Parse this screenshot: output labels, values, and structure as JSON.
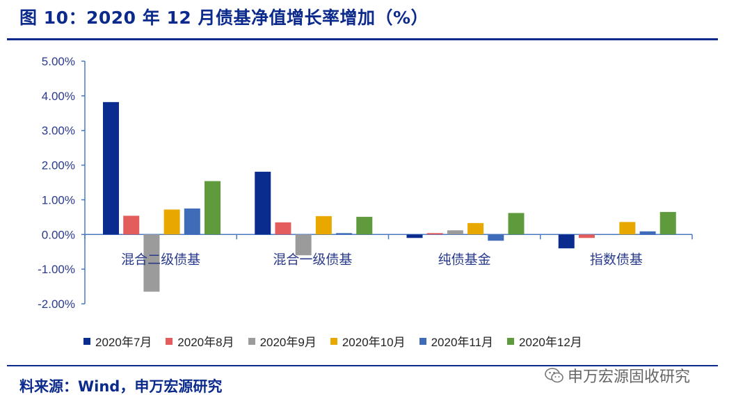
{
  "header": {
    "title": "图 10：2020 年 12 月债基净值增长率增加（%）"
  },
  "footer": {
    "source": "料来源：Wind，申万宏源研究",
    "watermark": "申万宏源固收研究"
  },
  "chart_data": {
    "type": "bar",
    "categories": [
      "混合二级债基",
      "混合一级债基",
      "纯债基金",
      "指数债基"
    ],
    "series": [
      {
        "name": "2020年7月",
        "color": "#0a2c8e",
        "values": [
          3.82,
          1.81,
          -0.1,
          -0.4
        ]
      },
      {
        "name": "2020年8月",
        "color": "#e35d5d",
        "values": [
          0.54,
          0.35,
          0.04,
          -0.1
        ]
      },
      {
        "name": "2020年9月",
        "color": "#9b9b9b",
        "values": [
          -1.65,
          -0.6,
          0.12,
          0.0
        ]
      },
      {
        "name": "2020年10月",
        "color": "#e8a800",
        "values": [
          0.72,
          0.53,
          0.33,
          0.36
        ]
      },
      {
        "name": "2020年11月",
        "color": "#3f6cb8",
        "values": [
          0.75,
          0.04,
          -0.18,
          0.09
        ]
      },
      {
        "name": "2020年12月",
        "color": "#5f9b3d",
        "values": [
          1.54,
          0.51,
          0.62,
          0.65
        ]
      }
    ],
    "yticks": [
      "5.00%",
      "4.00%",
      "3.00%",
      "2.00%",
      "1.00%",
      "0.00%",
      "-1.00%",
      "-2.00%"
    ],
    "ylim": [
      -2,
      5
    ],
    "grid": false,
    "legend": "bottom"
  }
}
